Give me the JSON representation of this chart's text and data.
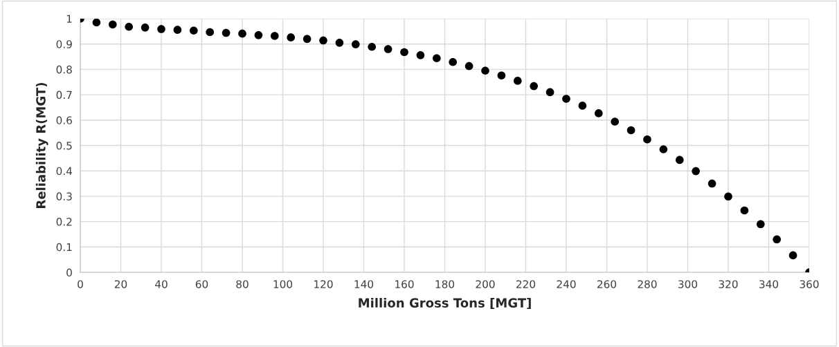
{
  "chart_data": {
    "type": "scatter",
    "xlabel": "Million Gross Tons [MGT]",
    "ylabel": "Reliability R(MGT)",
    "x": [
      0,
      8,
      16,
      24,
      32,
      40,
      48,
      56,
      64,
      72,
      80,
      88,
      96,
      104,
      112,
      120,
      128,
      136,
      144,
      152,
      160,
      168,
      176,
      184,
      192,
      200,
      208,
      216,
      224,
      232,
      240,
      248,
      256,
      264,
      272,
      280,
      288,
      296,
      304,
      312,
      320,
      328,
      336,
      344,
      352,
      360
    ],
    "series": [
      {
        "color": "#000000",
        "values": [
          1.0,
          0.985,
          0.977,
          0.968,
          0.965,
          0.959,
          0.956,
          0.953,
          0.947,
          0.944,
          0.941,
          0.935,
          0.932,
          0.926,
          0.92,
          0.914,
          0.905,
          0.899,
          0.889,
          0.88,
          0.868,
          0.856,
          0.844,
          0.829,
          0.813,
          0.795,
          0.776,
          0.755,
          0.734,
          0.71,
          0.684,
          0.657,
          0.627,
          0.594,
          0.56,
          0.524,
          0.485,
          0.443,
          0.399,
          0.35,
          0.299,
          0.244,
          0.19,
          0.13,
          0.067,
          0.0
        ]
      }
    ],
    "marker": "circle",
    "xlim": [
      0,
      360
    ],
    "xticks": [
      0,
      20,
      40,
      60,
      80,
      100,
      120,
      140,
      160,
      180,
      200,
      220,
      240,
      260,
      280,
      300,
      320,
      340,
      360
    ],
    "ylim": [
      0,
      1
    ],
    "yticks": [
      0,
      0.1,
      0.2,
      0.3,
      0.4,
      0.5,
      0.6,
      0.7,
      0.8,
      0.9,
      1
    ],
    "grid": true
  }
}
